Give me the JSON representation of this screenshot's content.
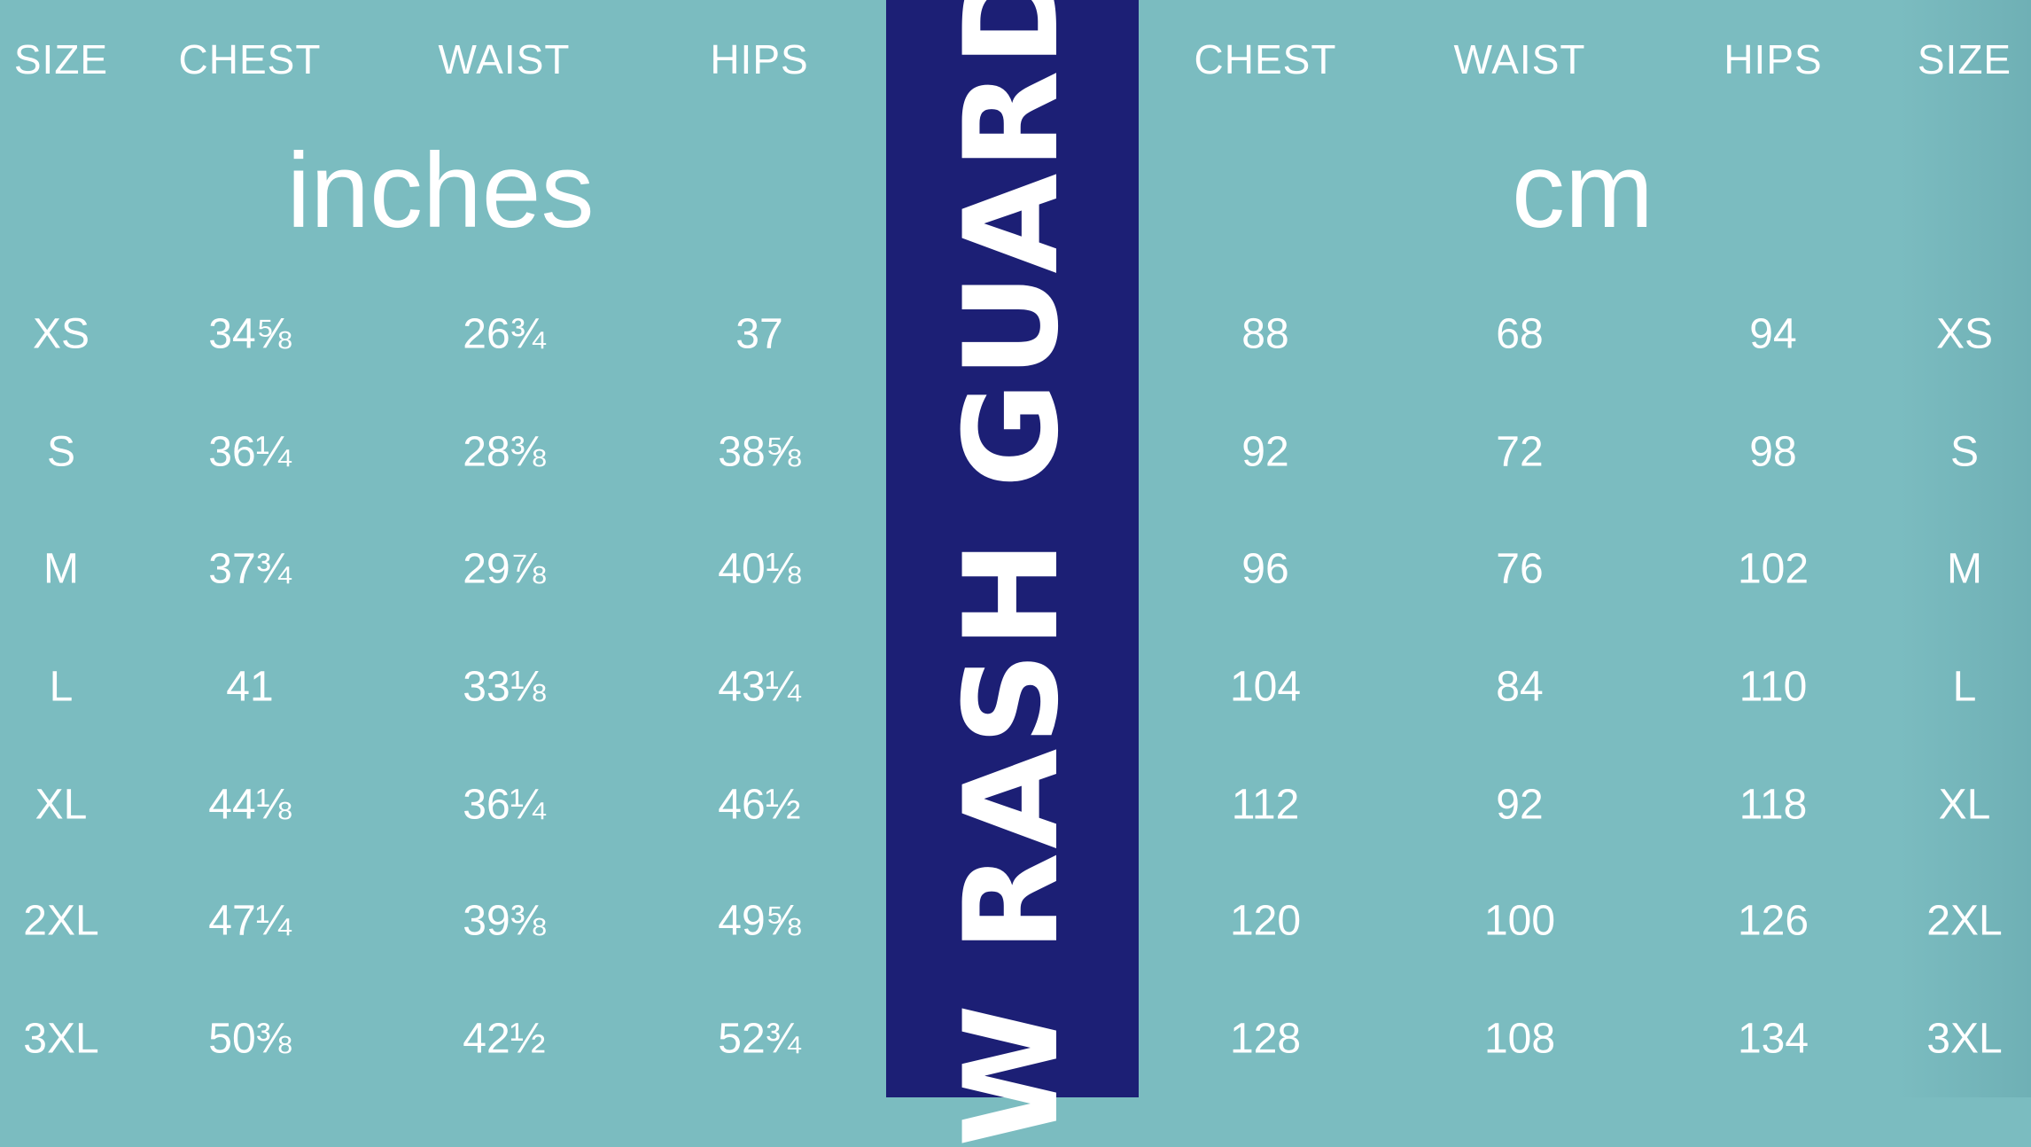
{
  "colors": {
    "background": "#7bbcc0",
    "band": "#1c1f75",
    "text": "#ffffff"
  },
  "title": "W RASH GUARD",
  "inches": {
    "unit": "inches",
    "headers": [
      "SIZE",
      "CHEST",
      "WAIST",
      "HIPS"
    ],
    "rows": [
      [
        "XS",
        "34⅝",
        "26¾",
        "37"
      ],
      [
        "S",
        "36¼",
        "28⅜",
        "38⅝"
      ],
      [
        "M",
        "37¾",
        "29⅞",
        "40⅛"
      ],
      [
        "L",
        "41",
        "33⅛",
        "43¼"
      ],
      [
        "XL",
        "44⅛",
        "36¼",
        "46½"
      ],
      [
        "2XL",
        "47¼",
        "39⅜",
        "49⅝"
      ],
      [
        "3XL",
        "50⅜",
        "42½",
        "52¾"
      ]
    ]
  },
  "cm": {
    "unit": "cm",
    "headers": [
      "CHEST",
      "WAIST",
      "HIPS",
      "SIZE"
    ],
    "rows": [
      [
        "88",
        "68",
        "94",
        "XS"
      ],
      [
        "92",
        "72",
        "98",
        "S"
      ],
      [
        "96",
        "76",
        "102",
        "M"
      ],
      [
        "104",
        "84",
        "110",
        "L"
      ],
      [
        "112",
        "92",
        "118",
        "XL"
      ],
      [
        "120",
        "100",
        "126",
        "2XL"
      ],
      [
        "128",
        "108",
        "134",
        "3XL"
      ]
    ]
  }
}
